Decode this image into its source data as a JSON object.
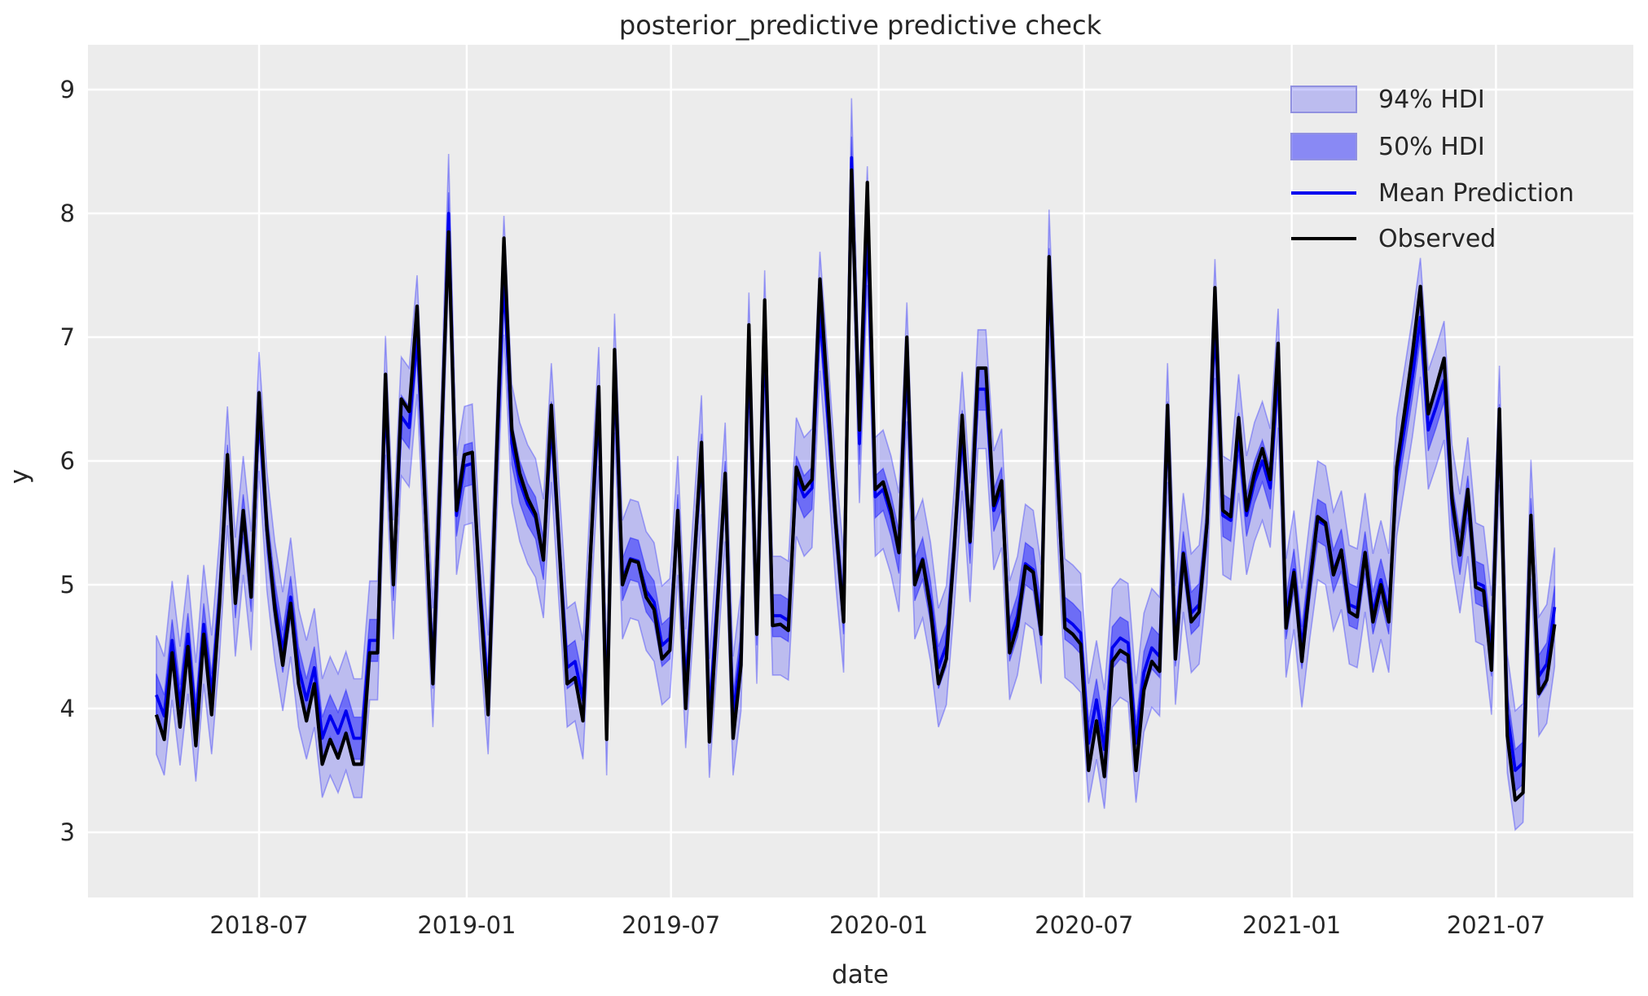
{
  "chart_data": {
    "type": "line",
    "title": "posterior_predictive predictive check",
    "xlabel": "date",
    "ylabel": "y",
    "grid": true,
    "background_color": "#ececec",
    "gridline_color": "#ffffff",
    "text_color": "#262626",
    "legend_position": "upper right",
    "legend": [
      {
        "label": "94% HDI",
        "type": "band",
        "color": "#0000ff",
        "opacity": 0.2
      },
      {
        "label": "50% HDI",
        "type": "band",
        "color": "#0000ff",
        "opacity": 0.42
      },
      {
        "label": "Mean Prediction",
        "type": "line",
        "color": "#0000ee"
      },
      {
        "label": "Observed",
        "type": "line",
        "color": "#000000"
      }
    ],
    "ylim": [
      2.47,
      9.36
    ],
    "yticks": [
      3,
      4,
      5,
      6,
      7,
      8,
      9
    ],
    "xlim": [
      "2018-01-31",
      "2021-10-31"
    ],
    "xticks": [
      {
        "date": "2018-07-01",
        "label": "2018-07"
      },
      {
        "date": "2019-01-01",
        "label": "2019-01"
      },
      {
        "date": "2019-07-01",
        "label": "2019-07"
      },
      {
        "date": "2020-01-01",
        "label": "2020-01"
      },
      {
        "date": "2020-07-01",
        "label": "2020-07"
      },
      {
        "date": "2021-01-01",
        "label": "2021-01"
      },
      {
        "date": "2021-07-01",
        "label": "2021-07"
      }
    ],
    "x_start": "2018-04-01",
    "x_step_days": 7,
    "n_points": 178,
    "hdi_94_halfwidth": 0.48,
    "hdi_50_halfwidth": 0.17,
    "series": [
      {
        "name": "Observed",
        "color": "#000000",
        "values": [
          3.95,
          3.75,
          4.45,
          3.85,
          4.5,
          3.7,
          4.6,
          3.95,
          4.85,
          6.05,
          4.85,
          5.6,
          4.9,
          6.55,
          5.45,
          4.8,
          4.35,
          4.85,
          4.2,
          3.9,
          4.2,
          3.55,
          3.75,
          3.6,
          3.8,
          3.55,
          3.55,
          4.45,
          4.45,
          6.7,
          5.0,
          6.5,
          6.4,
          7.25,
          5.7,
          4.2,
          6.0,
          7.85,
          5.6,
          6.05,
          6.07,
          4.9,
          3.95,
          5.9,
          7.8,
          6.25,
          5.9,
          5.7,
          5.57,
          5.2,
          6.45,
          5.3,
          4.2,
          4.25,
          3.9,
          5.3,
          6.6,
          3.75,
          6.9,
          5.0,
          5.2,
          5.18,
          4.9,
          4.8,
          4.4,
          4.47,
          5.6,
          4.0,
          5.1,
          6.15,
          3.73,
          4.8,
          5.9,
          3.76,
          4.35,
          7.1,
          4.6,
          7.3,
          4.67,
          4.68,
          4.63,
          5.95,
          5.77,
          5.85,
          7.47,
          6.5,
          5.5,
          4.7,
          8.35,
          6.25,
          8.25,
          5.77,
          5.83,
          5.6,
          5.26,
          7.0,
          5.0,
          5.2,
          4.8,
          4.2,
          4.4,
          5.3,
          6.37,
          5.35,
          6.75,
          6.75,
          5.64,
          5.84,
          4.45,
          4.67,
          5.15,
          5.1,
          4.6,
          7.65,
          6.0,
          4.65,
          4.6,
          4.52,
          3.5,
          3.9,
          3.45,
          4.38,
          4.47,
          4.43,
          3.5,
          4.15,
          4.38,
          4.3,
          6.45,
          4.4,
          5.25,
          4.7,
          4.78,
          5.5,
          7.4,
          5.6,
          5.55,
          6.35,
          5.6,
          5.9,
          6.1,
          5.85,
          6.95,
          4.65,
          5.1,
          4.38,
          5.0,
          5.55,
          5.5,
          5.08,
          5.28,
          4.78,
          4.74,
          5.26,
          4.7,
          5.0,
          4.7,
          5.95,
          6.4,
          6.87,
          7.41,
          6.38,
          6.6,
          6.83,
          5.7,
          5.24,
          5.77,
          4.98,
          4.95,
          4.31,
          6.42,
          3.78,
          3.26,
          3.32,
          5.56,
          4.12,
          4.23,
          4.68
        ]
      },
      {
        "name": "Mean Prediction",
        "color": "#0000ee",
        "values": [
          4.11,
          3.94,
          4.55,
          4.02,
          4.6,
          3.89,
          4.68,
          4.11,
          4.9,
          5.96,
          4.9,
          5.56,
          4.95,
          6.4,
          5.43,
          4.86,
          4.46,
          4.9,
          4.33,
          4.07,
          4.33,
          3.76,
          3.94,
          3.8,
          3.98,
          3.76,
          3.76,
          4.55,
          4.55,
          6.53,
          5.04,
          6.36,
          6.27,
          7.02,
          5.65,
          4.33,
          5.92,
          8.0,
          5.56,
          5.96,
          5.98,
          4.95,
          4.11,
          5.83,
          7.5,
          6.14,
          5.83,
          5.65,
          5.54,
          5.21,
          6.31,
          5.3,
          4.33,
          4.38,
          4.07,
          5.3,
          6.44,
          3.94,
          6.71,
          5.04,
          5.21,
          5.19,
          4.95,
          4.86,
          4.51,
          4.57,
          5.56,
          4.16,
          5.12,
          6.05,
          3.92,
          4.86,
          5.83,
          3.94,
          4.46,
          6.88,
          4.68,
          7.06,
          4.75,
          4.75,
          4.71,
          5.87,
          5.71,
          5.78,
          7.21,
          6.36,
          5.48,
          4.77,
          8.45,
          6.14,
          7.9,
          5.71,
          5.77,
          5.56,
          5.26,
          6.8,
          5.04,
          5.21,
          4.86,
          4.33,
          4.51,
          5.3,
          6.24,
          5.34,
          6.58,
          6.58,
          5.6,
          5.78,
          4.55,
          4.75,
          5.17,
          5.12,
          4.68,
          7.55,
          5.92,
          4.73,
          4.68,
          4.61,
          3.72,
          4.07,
          3.67,
          4.49,
          4.57,
          4.53,
          3.72,
          4.29,
          4.49,
          4.42,
          6.31,
          4.51,
          5.26,
          4.77,
          4.84,
          5.48,
          7.15,
          5.56,
          5.52,
          6.22,
          5.56,
          5.83,
          6.0,
          5.78,
          6.75,
          4.73,
          5.12,
          4.49,
          5.04,
          5.52,
          5.48,
          5.11,
          5.28,
          4.84,
          4.81,
          5.26,
          4.77,
          5.04,
          4.77,
          5.87,
          6.27,
          6.68,
          7.16,
          6.25,
          6.44,
          6.65,
          5.65,
          5.25,
          5.71,
          5.02,
          4.99,
          4.43,
          6.29,
          3.96,
          3.5,
          3.56,
          5.53,
          4.26,
          4.36,
          4.82
        ]
      }
    ]
  }
}
